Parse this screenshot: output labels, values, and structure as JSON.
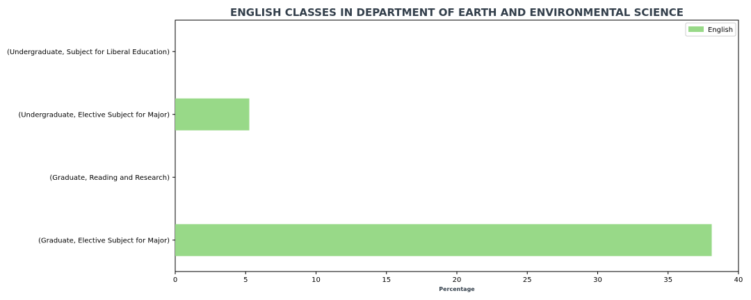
{
  "chart_data": {
    "type": "bar",
    "orientation": "horizontal",
    "title": "ENGLISH CLASSES IN DEPARTMENT OF EARTH AND ENVIRONMENTAL SCIENCE",
    "xlabel": "Percentage",
    "ylabel": "",
    "xlim": [
      0,
      40
    ],
    "xticks": [
      "0",
      "5",
      "10",
      "15",
      "20",
      "25",
      "30",
      "35",
      "40"
    ],
    "categories": [
      "(Undergraduate, Subject for Liberal Education)",
      "(Undergraduate, Elective Subject for Major)",
      "(Graduate, Reading and Research)",
      "(Graduate, Elective Subject for Major)"
    ],
    "series": [
      {
        "name": "English",
        "values": [
          0,
          5.26,
          0,
          38.1
        ],
        "color": "#98d988"
      }
    ],
    "legend_position": "top-right",
    "grid": false
  }
}
